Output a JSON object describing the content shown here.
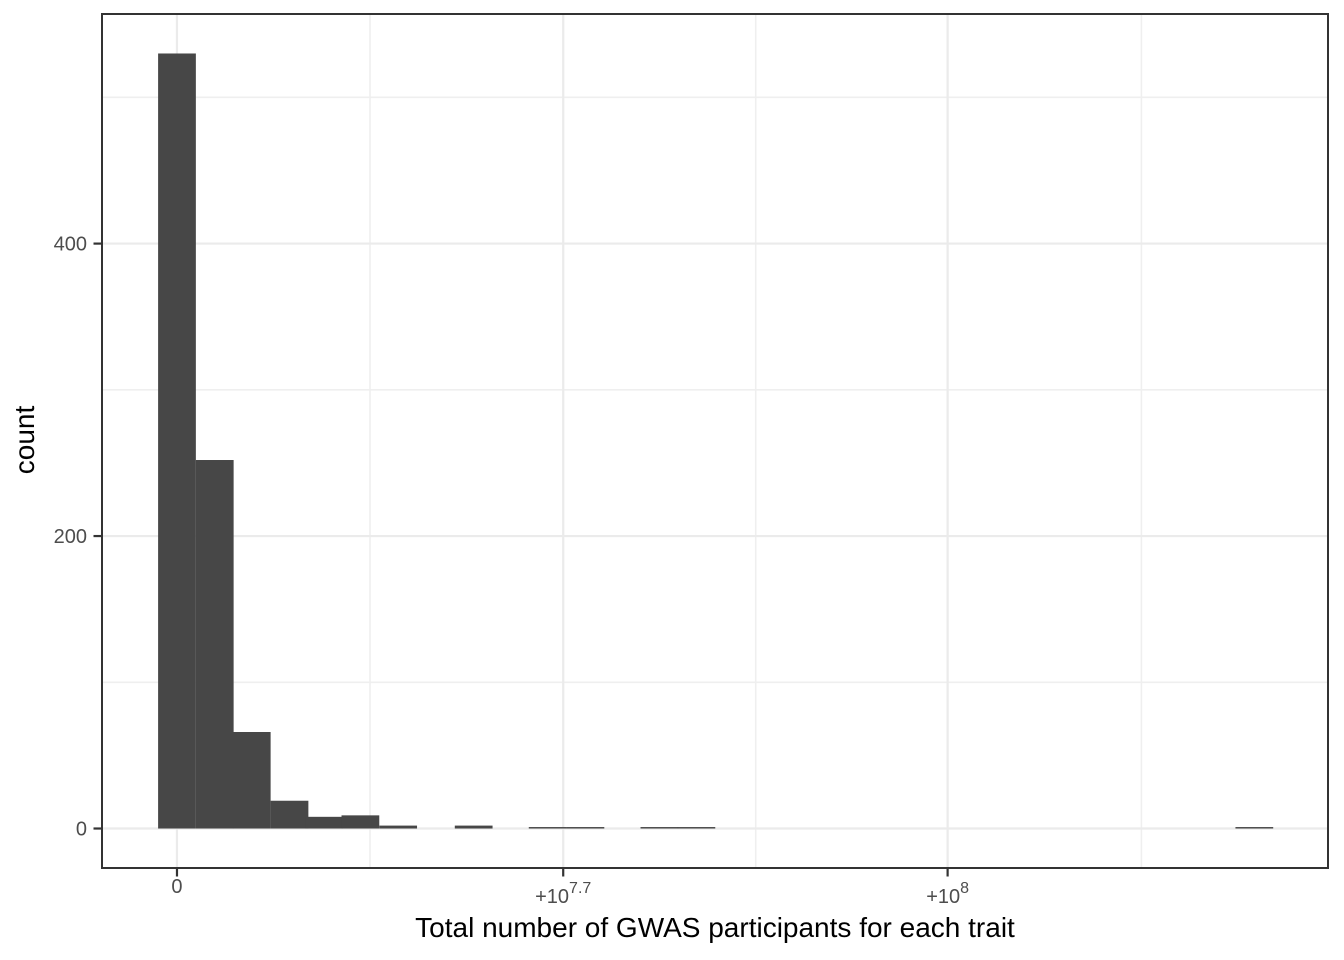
{
  "figure": {
    "background": "#ffffff"
  },
  "chart_data": {
    "type": "bar",
    "variant": "histogram",
    "title": "",
    "xlabel": "Total number of GWAS participants for each trait",
    "ylabel": "count",
    "x_unit": "participants",
    "legend": false,
    "grid": true,
    "bin_width": 4900000,
    "bins": [
      {
        "center": 0,
        "count": 530
      },
      {
        "center": 4900000,
        "count": 252
      },
      {
        "center": 9700000,
        "count": 66
      },
      {
        "center": 14600000,
        "count": 19
      },
      {
        "center": 19100000,
        "count": 8
      },
      {
        "center": 23800000,
        "count": 9
      },
      {
        "center": 28700000,
        "count": 2
      },
      {
        "center": 38500000,
        "count": 2
      },
      {
        "center": 48100000,
        "count": 1
      },
      {
        "center": 53000000,
        "count": 1
      },
      {
        "center": 62600000,
        "count": 1
      },
      {
        "center": 67400000,
        "count": 1
      },
      {
        "center": 139800000,
        "count": 1
      }
    ],
    "x_axis": {
      "ticks": [
        {
          "value": 0,
          "label": "0",
          "superscript": ""
        },
        {
          "value": 50118723,
          "label": "+10",
          "superscript": "7.7"
        },
        {
          "value": 100000000,
          "label": "+10",
          "superscript": "8"
        }
      ],
      "minor_ticks": [
        25050000,
        75100000,
        125150000
      ],
      "range": [
        -9730000,
        149360000
      ]
    },
    "y_axis": {
      "ticks": [
        {
          "value": 0,
          "label": "0"
        },
        {
          "value": 200,
          "label": "200"
        },
        {
          "value": 400,
          "label": "400"
        }
      ],
      "minor_ticks": [
        100,
        300,
        500
      ],
      "range": [
        -27,
        557
      ]
    },
    "colors": {
      "bar_fill": "#474747",
      "grid_major": "#ebebeb",
      "grid_minor": "#efefef",
      "panel_border": "#333333",
      "tick_mark": "#333333",
      "tick_label": "#4d4d4d",
      "axis_title": "#000000",
      "panel_background": "#ffffff"
    }
  }
}
